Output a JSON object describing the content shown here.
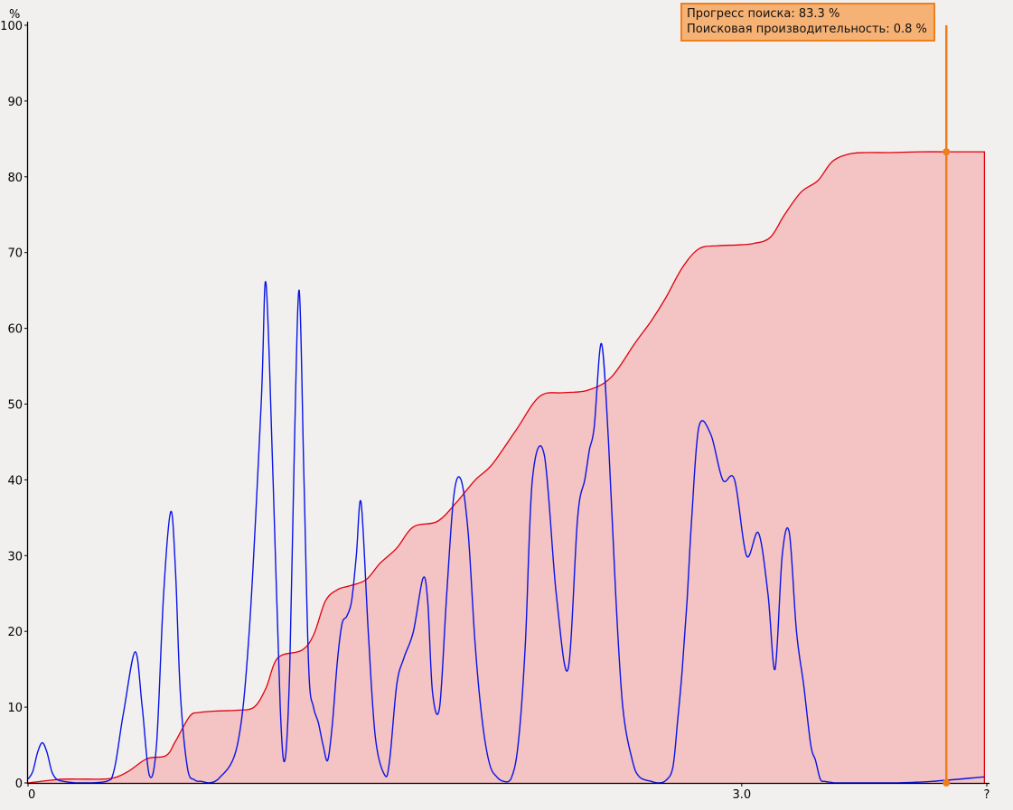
{
  "tooltip": {
    "progress_label": "Прогресс поиска: 83.3 %",
    "performance_label": "Поисковая производительность: 0.8 %"
  },
  "chart_data": {
    "type": "area",
    "ylabel": "%",
    "ylim": [
      0,
      100
    ],
    "yticks": [
      0,
      10,
      20,
      30,
      40,
      50,
      60,
      70,
      80,
      90,
      100
    ],
    "xticks": [
      {
        "value": 0,
        "label": "0"
      },
      {
        "value": 3.0,
        "label": "3.0"
      },
      {
        "value": 4.03,
        "label": "?"
      }
    ],
    "xlim": [
      0,
      4.03
    ],
    "cursor": {
      "x": 3.86,
      "progress": 83.3,
      "performance": 0.8
    },
    "colors": {
      "progress": "#e0000e",
      "progress_fill": "#f4c3c3",
      "performance": "#0a14e6",
      "cursor": "#f07e1b",
      "axis": "#000000"
    },
    "series": [
      {
        "name": "Прогресс поиска",
        "x": [
          0,
          0.08,
          0.15,
          0.25,
          0.35,
          0.42,
          0.5,
          0.58,
          0.62,
          0.68,
          0.72,
          0.8,
          0.88,
          0.95,
          1.0,
          1.05,
          1.15,
          1.2,
          1.25,
          1.3,
          1.35,
          1.42,
          1.48,
          1.55,
          1.62,
          1.72,
          1.8,
          1.88,
          1.95,
          2.05,
          2.15,
          2.25,
          2.35,
          2.45,
          2.55,
          2.62,
          2.68,
          2.75,
          2.82,
          2.9,
          2.98,
          3.05,
          3.12,
          3.18,
          3.25,
          3.32,
          3.38,
          3.45,
          3.52,
          3.62,
          3.75,
          3.86,
          4.02
        ],
        "values": [
          0,
          0.3,
          0.5,
          0.5,
          0.6,
          1.5,
          3.2,
          3.6,
          5.5,
          8.8,
          9.3,
          9.5,
          9.6,
          10.0,
          12.5,
          16.5,
          17.5,
          19.5,
          24.0,
          25.5,
          26.0,
          26.8,
          29.0,
          31.0,
          33.8,
          34.5,
          37.0,
          40.0,
          42.0,
          46.5,
          51.0,
          51.5,
          51.8,
          53.5,
          58.0,
          61.0,
          64.0,
          68.0,
          70.5,
          70.9,
          71.0,
          71.2,
          72.0,
          75.0,
          78.0,
          79.5,
          82.0,
          83.0,
          83.2,
          83.2,
          83.3,
          83.3,
          83.3
        ]
      },
      {
        "name": "Поисковая производительность",
        "x": [
          0,
          0.02,
          0.04,
          0.06,
          0.08,
          0.1,
          0.12,
          0.15,
          0.2,
          0.27,
          0.35,
          0.4,
          0.45,
          0.48,
          0.51,
          0.54,
          0.57,
          0.6,
          0.62,
          0.64,
          0.67,
          0.7,
          0.73,
          0.76,
          0.8,
          0.88,
          0.93,
          0.98,
          1.0,
          1.03,
          1.06,
          1.08,
          1.1,
          1.12,
          1.14,
          1.16,
          1.18,
          1.2,
          1.22,
          1.24,
          1.26,
          1.28,
          1.3,
          1.32,
          1.34,
          1.36,
          1.38,
          1.4,
          1.43,
          1.46,
          1.5,
          1.52,
          1.55,
          1.58,
          1.62,
          1.66,
          1.68,
          1.7,
          1.73,
          1.76,
          1.79,
          1.82,
          1.85,
          1.88,
          1.91,
          1.94,
          1.97,
          2.0,
          2.03,
          2.06,
          2.09,
          2.12,
          2.17,
          2.22,
          2.27,
          2.31,
          2.34,
          2.36,
          2.38,
          2.41,
          2.44,
          2.47,
          2.5,
          2.54,
          2.57,
          2.62,
          2.65,
          2.68,
          2.71,
          2.73,
          2.75,
          2.77,
          2.79,
          2.82,
          2.87,
          2.92,
          2.97,
          3.02,
          3.07,
          3.11,
          3.14,
          3.17,
          3.2,
          3.23,
          3.26,
          3.29,
          3.31,
          3.33,
          3.35,
          3.37,
          3.39,
          3.41,
          3.43,
          3.45,
          3.47,
          3.5,
          3.55,
          3.65,
          3.8,
          4.02
        ],
        "values": [
          0.5,
          1.5,
          4,
          5.3,
          4,
          1.5,
          0.5,
          0.2,
          0,
          0,
          0.5,
          9,
          17.3,
          10,
          1,
          5,
          25,
          35.8,
          28,
          12,
          2,
          0.4,
          0.2,
          0,
          0.5,
          5,
          20,
          50,
          66,
          40,
          10,
          3,
          15,
          45,
          65,
          40,
          15,
          10,
          8,
          5,
          3,
          8,
          16,
          21,
          22,
          24,
          30,
          37,
          20,
          6,
          1,
          3,
          13,
          16.5,
          20,
          27,
          24,
          12,
          10,
          25,
          38,
          40,
          33,
          18,
          8,
          2.5,
          0.8,
          0.2,
          0.5,
          5,
          18,
          40,
          43.3,
          25,
          15,
          35,
          40,
          44,
          47,
          58,
          45,
          25,
          10,
          3,
          0.8,
          0.2,
          0,
          0.3,
          2,
          8,
          15,
          24,
          35,
          47,
          46,
          40,
          40,
          30,
          33,
          25,
          15,
          30,
          33,
          20,
          13,
          5,
          3,
          0.5,
          0.2,
          0.1,
          0,
          0,
          0,
          0,
          0,
          0,
          0,
          0,
          0.2,
          0.8
        ]
      }
    ]
  }
}
